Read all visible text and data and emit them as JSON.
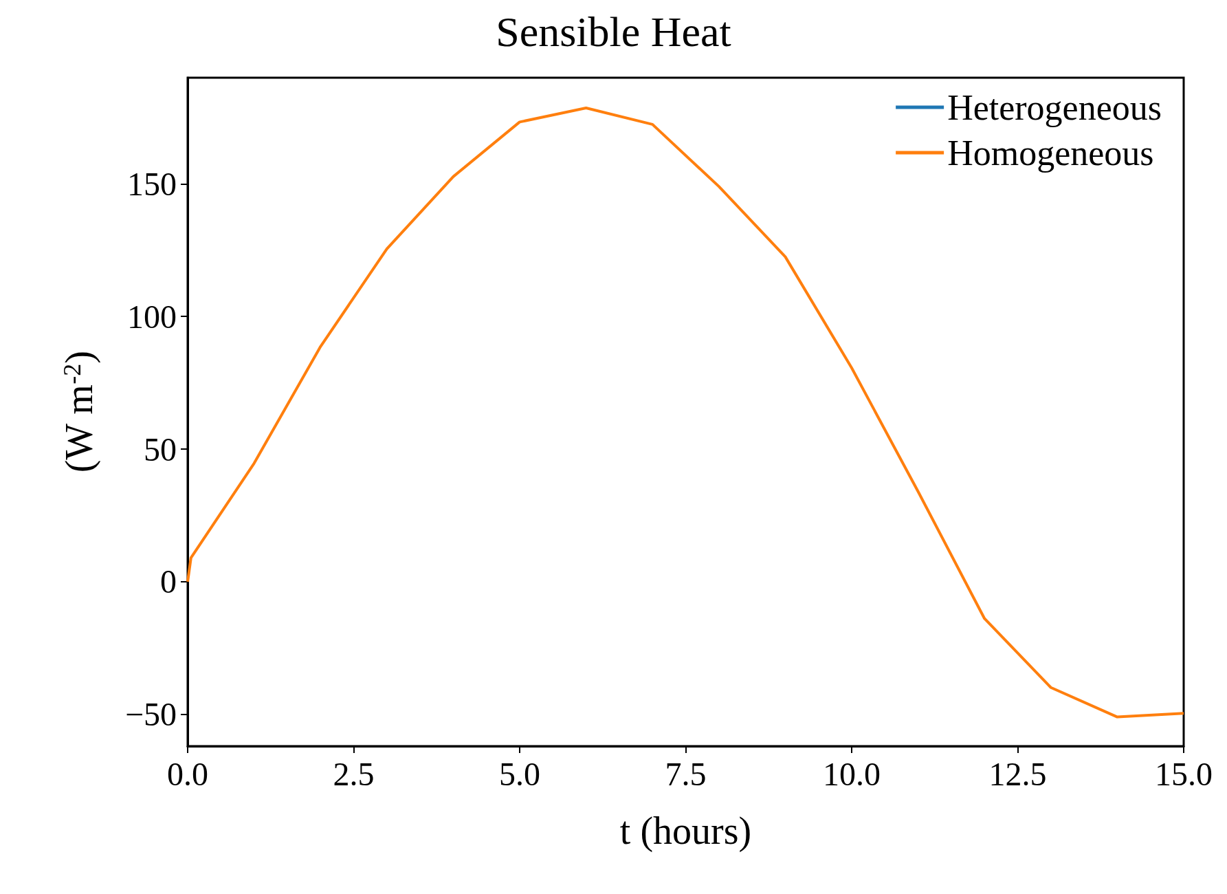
{
  "chart_data": {
    "type": "line",
    "title": "Sensible Heat",
    "xlabel": "t (hours)",
    "ylabel": "(W m$^{-2}$)",
    "x": [
      0,
      0.05,
      1,
      2,
      3,
      4,
      5,
      6,
      7,
      8,
      9,
      10,
      11,
      12,
      13,
      14,
      15
    ],
    "series": [
      {
        "name": "Heterogeneous",
        "color": "#1f77b4",
        "values": [
          null,
          null,
          null,
          null,
          null,
          null,
          null,
          null,
          null,
          null,
          null,
          null,
          null,
          null,
          null,
          null,
          null
        ]
      },
      {
        "name": "Homogeneous",
        "color": "#ff7f0e",
        "values": [
          0,
          9,
          44.6,
          88.6,
          125.5,
          152.7,
          173.3,
          178.6,
          172.4,
          149,
          122.5,
          80.6,
          34,
          -13.9,
          -39.9,
          -51,
          -49.6
        ]
      }
    ],
    "xlim": [
      0,
      15
    ],
    "xticks": [
      {
        "value": 0,
        "label": "0.0"
      },
      {
        "value": 2.5,
        "label": "2.5"
      },
      {
        "value": 5,
        "label": "5.0"
      },
      {
        "value": 7.5,
        "label": "7.5"
      },
      {
        "value": 10,
        "label": "10.0"
      },
      {
        "value": 12.5,
        "label": "12.5"
      },
      {
        "value": 15,
        "label": "15.0"
      }
    ],
    "ylim": [
      -62,
      190
    ],
    "yticks": [
      -50,
      0,
      50,
      100,
      150
    ],
    "grid": false,
    "legend": "top right",
    "marker": "none",
    "line_style": "solid"
  }
}
